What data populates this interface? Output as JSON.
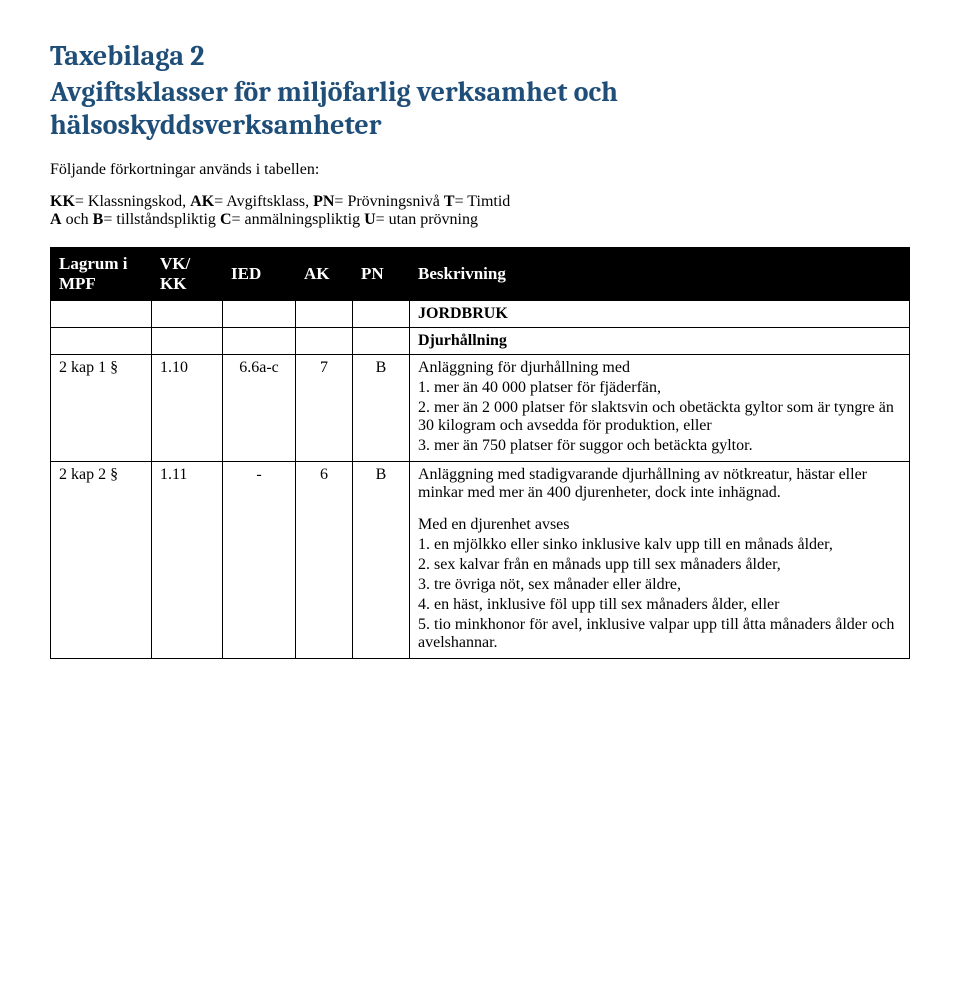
{
  "title_line1": "Taxebilaga 2",
  "title_line2": "Avgiftsklasser för miljöfarlig verksamhet och hälsoskyddsverksamheter",
  "intro": "Följande förkortningar används i tabellen:",
  "abbrev_parts": [
    {
      "b": "KK",
      "t": "= Klassningskod, "
    },
    {
      "b": "AK",
      "t": "= Avgiftsklass, "
    },
    {
      "b": "PN",
      "t": "= Prövningsnivå "
    },
    {
      "b": "T",
      "t": "= Timtid"
    }
  ],
  "abbrev_line2_parts": [
    {
      "b": "A",
      "t": " och "
    },
    {
      "b": "B",
      "t": "= tillståndspliktig "
    },
    {
      "b": "C",
      "t": "= anmälningspliktig "
    },
    {
      "b": "U",
      "t": "= utan prövning"
    }
  ],
  "headers": {
    "lagrum": "Lagrum i MPF",
    "vk": "VK/ KK",
    "ied": "IED",
    "ak": "AK",
    "pn": "PN",
    "besk": "Beskrivning"
  },
  "section1": "JORDBRUK",
  "section2": "Djurhållning",
  "rows": [
    {
      "lagrum": "2 kap 1 §",
      "vk": "1.10",
      "ied": "6.6a-c",
      "ak": "7",
      "pn": "B",
      "desc": [
        "Anläggning för djurhållning med",
        "1. mer än 40 000 platser för fjäderfän,",
        "2. mer än 2 000 platser för slaktsvin och obetäckta gyltor som är tyngre än 30 kilogram och avsedda för produktion, eller",
        "3. mer än 750 platser för suggor och betäckta gyltor."
      ]
    },
    {
      "lagrum": "2 kap 2 §",
      "vk": "1.11",
      "ied": "-",
      "ak": "6",
      "pn": "B",
      "desc": [
        "Anläggning med stadigvarande djurhållning av nötkreatur, hästar eller minkar med mer än 400 djurenheter, dock inte inhägnad."
      ],
      "desc2": [
        "Med en djurenhet avses",
        "1. en mjölkko eller sinko inklusive kalv upp till en månads ålder,",
        "2. sex kalvar från en månads upp till sex månaders ålder,",
        "3. tre övriga nöt, sex månader eller äldre,",
        "4. en häst, inklusive föl upp till sex månaders ålder, eller",
        "5. tio minkhonor för avel, inklusive valpar upp till åtta månaders ålder och avelshannar."
      ]
    }
  ]
}
